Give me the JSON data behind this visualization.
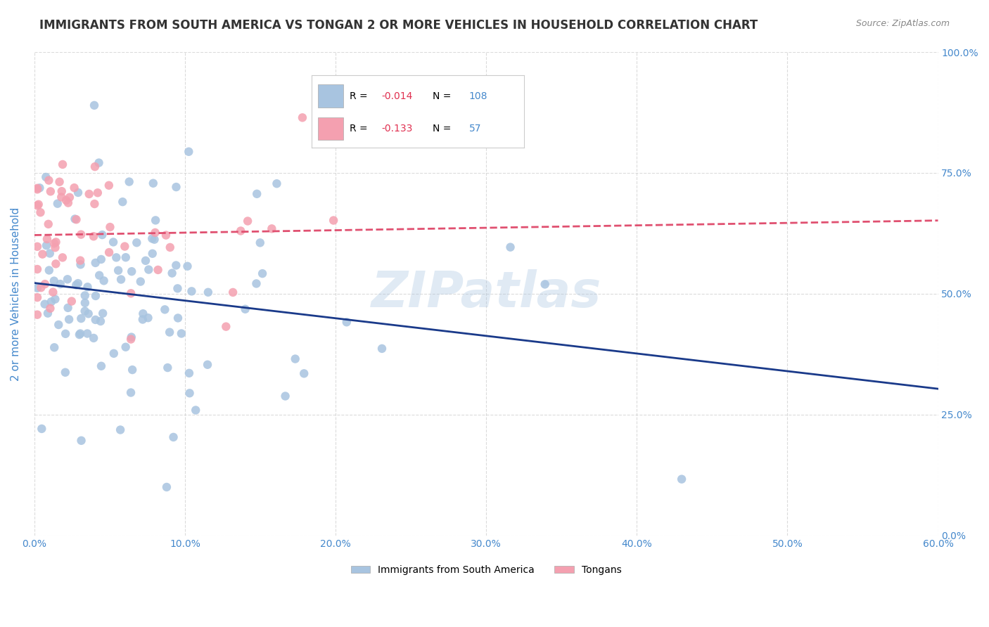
{
  "title": "IMMIGRANTS FROM SOUTH AMERICA VS TONGAN 2 OR MORE VEHICLES IN HOUSEHOLD CORRELATION CHART",
  "source": "Source: ZipAtlas.com",
  "ylabel": "2 or more Vehicles in Household",
  "blue_R": -0.014,
  "blue_N": 108,
  "pink_R": -0.133,
  "pink_N": 57,
  "blue_color": "#a8c4e0",
  "pink_color": "#f4a0b0",
  "blue_line_color": "#1a3a8a",
  "pink_line_color": "#e05070",
  "legend_label_blue": "Immigrants from South America",
  "legend_label_pink": "Tongans",
  "watermark": "ZIPatlas",
  "xlim": [
    0.0,
    0.6
  ],
  "ylim": [
    0.0,
    1.0
  ],
  "background_color": "#ffffff",
  "grid_color": "#cccccc",
  "title_color": "#333333",
  "axis_label_color": "#4488cc",
  "tick_color": "#4488cc"
}
